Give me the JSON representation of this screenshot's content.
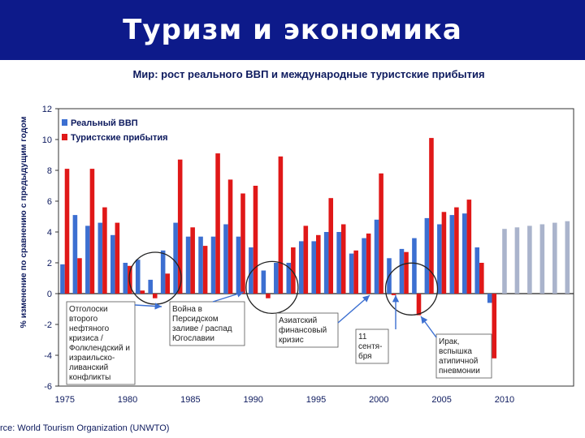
{
  "slide": {
    "title": "Туризм и экономика",
    "source": "rce: World Tourism Organization (UNWTO)"
  },
  "chart_data": {
    "type": "bar",
    "title": "Мир: рост реального ВВП и международные туристские прибытия",
    "ylabel": "% изменение по сравнению с предыдущим годом",
    "xlabel": "",
    "ylim": [
      -6,
      12
    ],
    "yticks": [
      -6,
      -4,
      -2,
      0,
      2,
      4,
      6,
      8,
      10,
      12
    ],
    "xtick_labels": [
      "1975",
      "1980",
      "1985",
      "1990",
      "1995",
      "2000",
      "2005",
      "2010"
    ],
    "x": [
      1975,
      1976,
      1977,
      1978,
      1979,
      1980,
      1981,
      1982,
      1983,
      1984,
      1985,
      1986,
      1987,
      1988,
      1989,
      1990,
      1991,
      1992,
      1993,
      1994,
      1995,
      1996,
      1997,
      1998,
      1999,
      2000,
      2001,
      2002,
      2003,
      2004,
      2005,
      2006,
      2007,
      2008,
      2009,
      2010,
      2011,
      2012,
      2013,
      2014,
      2015
    ],
    "series": [
      {
        "name": "Реальный ВВП",
        "color": "#3c6fd1",
        "values": [
          1.9,
          5.1,
          4.4,
          4.6,
          3.8,
          2.0,
          2.2,
          0.9,
          2.8,
          4.6,
          3.7,
          3.7,
          3.7,
          4.5,
          3.7,
          3.0,
          1.5,
          2.0,
          2.0,
          3.4,
          3.4,
          4.0,
          4.0,
          2.6,
          3.6,
          4.8,
          2.3,
          2.9,
          3.6,
          4.9,
          4.5,
          5.1,
          5.2,
          3.0,
          -0.6,
          null,
          null,
          null,
          null,
          null,
          null
        ]
      },
      {
        "name": "Туристские прибытия",
        "color": "#e01818",
        "values": [
          8.1,
          2.3,
          8.1,
          5.6,
          4.6,
          1.8,
          0.2,
          -0.3,
          1.3,
          8.7,
          4.3,
          3.1,
          9.1,
          7.4,
          6.5,
          7.0,
          -0.3,
          8.9,
          3.0,
          4.4,
          3.8,
          6.2,
          4.5,
          2.8,
          3.9,
          7.8,
          -0.1,
          2.7,
          -1.4,
          10.1,
          5.3,
          5.6,
          6.1,
          2.0,
          -4.2,
          null,
          null,
          null,
          null,
          null,
          null
        ]
      },
      {
        "name": "",
        "color": "#aab4cc",
        "values": [
          null,
          null,
          null,
          null,
          null,
          null,
          null,
          null,
          null,
          null,
          null,
          null,
          null,
          null,
          null,
          null,
          null,
          null,
          null,
          null,
          null,
          null,
          null,
          null,
          null,
          null,
          null,
          null,
          null,
          null,
          null,
          null,
          null,
          null,
          null,
          4.2,
          4.3,
          4.4,
          4.5,
          4.6,
          4.7
        ]
      }
    ],
    "annotations": [
      {
        "text": "Отголоски второго нефтяного кризиса / Фолклендский и израильско-ливанский конфликты"
      },
      {
        "text": "Война в Персидском заливе / распад Югославии"
      },
      {
        "text": "Азиатский финансовый кризис"
      },
      {
        "text": "11 сентя-бря"
      },
      {
        "text": "Ирак, вспышка атипичной пневмонии"
      }
    ]
  }
}
